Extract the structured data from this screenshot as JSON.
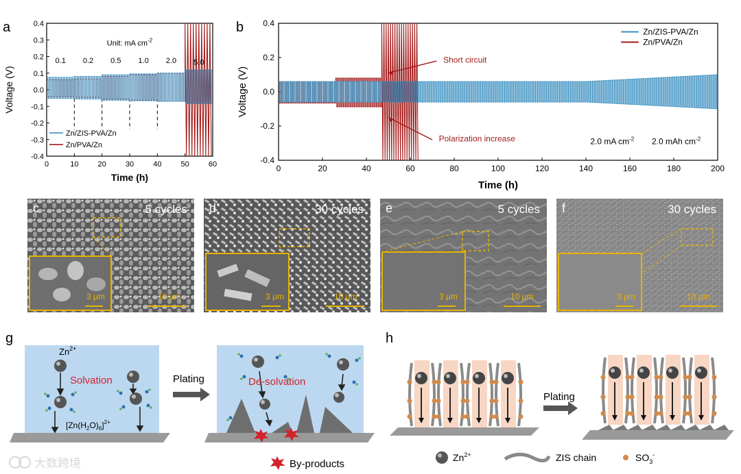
{
  "panel_a": {
    "letter": "a",
    "unit_label": "Unit: mA cm",
    "unit_sup": "-2",
    "rates": [
      "0.1",
      "0.2",
      "0.5",
      "1.0",
      "2.0",
      "5.0"
    ],
    "legend": [
      "Zn/ZIS-PVA/Zn",
      "Zn/PVA/Zn"
    ]
  },
  "panel_b": {
    "letter": "b",
    "legend": [
      "Zn/ZIS-PVA/Zn",
      "Zn/PVA/Zn"
    ],
    "annot_short": "Short circuit",
    "annot_polar": "Polarization increase",
    "cond1": "2.0 mA cm",
    "cond2": "2.0 mAh cm",
    "sup": "-2"
  },
  "sem": [
    {
      "letter": "c",
      "label": "5 cycles",
      "scale_big": "10 μm",
      "scale_small": "3 μm"
    },
    {
      "letter": "d",
      "label": "30 cycles",
      "scale_big": "10 μm",
      "scale_small": "3 μm"
    },
    {
      "letter": "e",
      "label": "5 cycles",
      "scale_big": "10 μm",
      "scale_small": "3 μm"
    },
    {
      "letter": "f",
      "label": "30 cycles",
      "scale_big": "10 μm",
      "scale_small": "3 μm"
    }
  ],
  "panel_g": {
    "letter": "g",
    "zn_ion": "Zn",
    "zn_sup": "2+",
    "solvation": "Solvation",
    "desolvation": "De-solvation",
    "plating": "Plating",
    "complex": "[Zn(H",
    "complex2": "O)",
    "complex3": "]",
    "by_products": "By-products"
  },
  "panel_h": {
    "letter": "h",
    "plating": "Plating",
    "legend_zn": "Zn",
    "legend_zn_sup": "2+",
    "legend_chain": "ZIS chain",
    "legend_so3": "SO",
    "legend_so3_sub": "3",
    "legend_so3_sup": "-"
  },
  "watermark": "大数跨境",
  "colors": {
    "blue": "#3a8fc0",
    "red": "#a31a1a",
    "accent": "#e8b400",
    "bg_blue": "#bcd8f0",
    "salmon": "#f7d6c4"
  },
  "chart_data": [
    {
      "type": "line",
      "title": "",
      "xlabel": "Time (h)",
      "ylabel": "Voltage (V)",
      "xlim": [
        0,
        60
      ],
      "ylim": [
        -0.4,
        0.4
      ],
      "xticks": [
        "0",
        "10",
        "20",
        "30",
        "40",
        "50",
        "60"
      ],
      "yticks": [
        "0.4",
        "0.3",
        "0.2",
        "0.1",
        "0.0",
        "-0.1",
        "-0.2",
        "-0.3",
        "-0.4"
      ],
      "step_boundaries_h": [
        10,
        20,
        30,
        40,
        50
      ],
      "series": [
        {
          "name": "Zn/ZIS-PVA/Zn",
          "amplitude_by_step_V": [
            0.075,
            0.08,
            0.09,
            0.095,
            0.1,
            0.12
          ]
        },
        {
          "name": "Zn/PVA/Zn",
          "amplitude_by_step_V": [
            0.06,
            0.065,
            0.08,
            0.09,
            0.1,
            0.4
          ],
          "short_circuit_h": 50
        }
      ]
    },
    {
      "type": "line",
      "title": "",
      "xlabel": "Time (h)",
      "ylabel": "Voltage (V)",
      "xlim": [
        0,
        200
      ],
      "ylim": [
        -0.4,
        0.4
      ],
      "xticks": [
        "0",
        "20",
        "40",
        "60",
        "80",
        "100",
        "120",
        "140",
        "160",
        "180",
        "200"
      ],
      "yticks": [
        "0.4",
        "0.2",
        "0.0",
        "-0.2",
        "-0.4"
      ],
      "series": [
        {
          "name": "Zn/ZIS-PVA/Zn",
          "amplitude_start_V": 0.06,
          "amplitude_end_V": 0.1
        },
        {
          "name": "Zn/PVA/Zn",
          "amplitude_start_V": 0.06,
          "short_circuit_h": 47,
          "end_h": 64
        }
      ]
    }
  ]
}
